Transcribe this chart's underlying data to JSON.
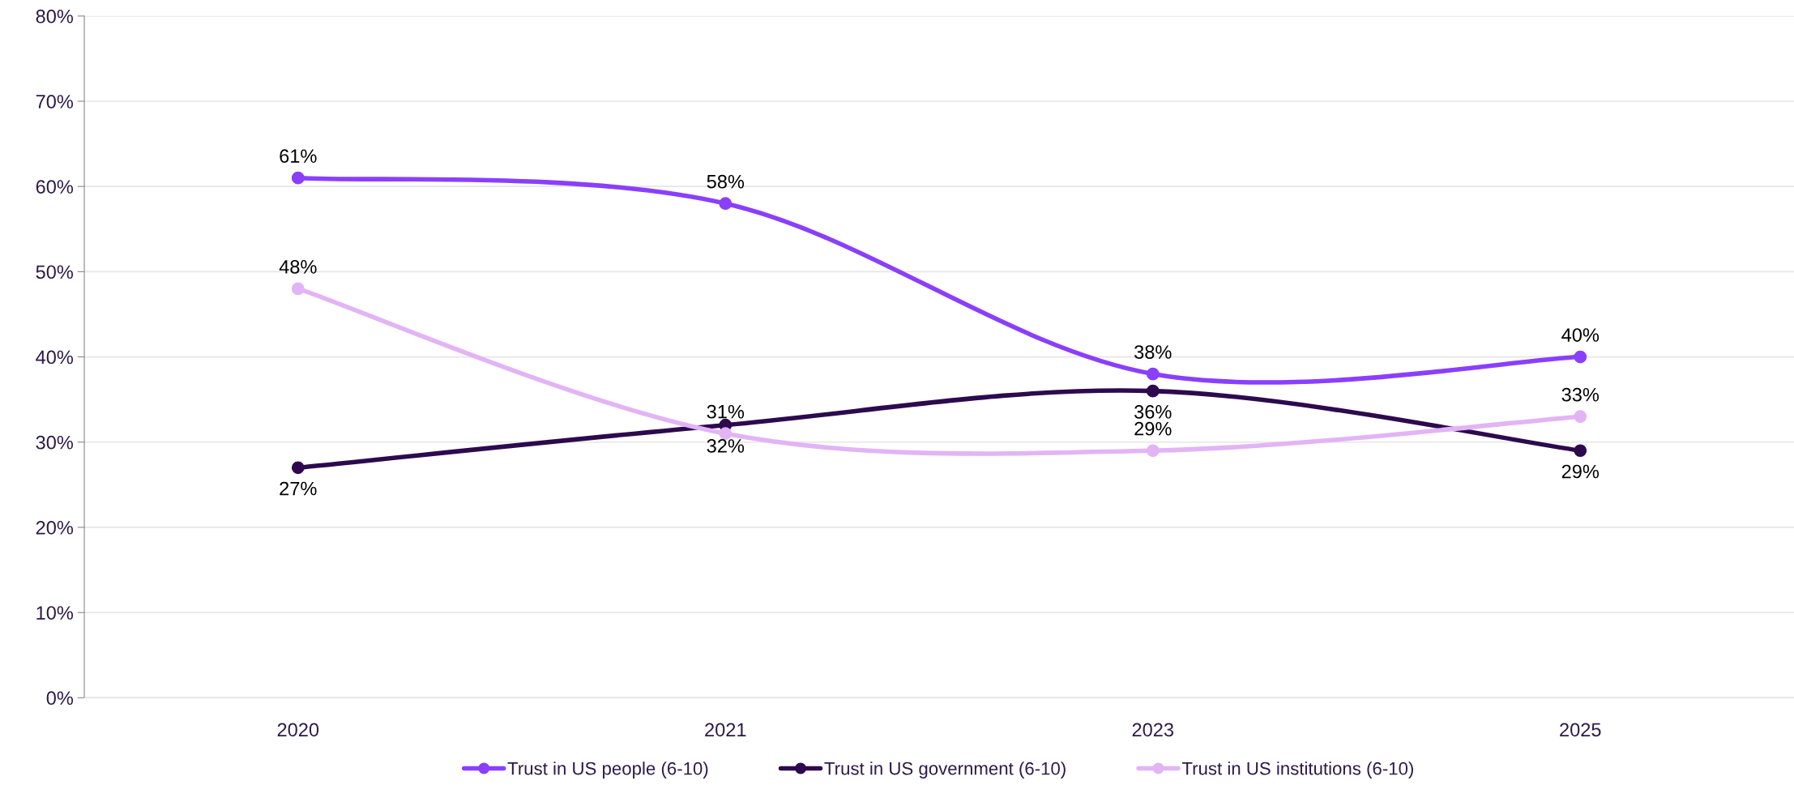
{
  "chart_data": {
    "type": "line",
    "categories": [
      "2020",
      "2021",
      "2023",
      "2025"
    ],
    "series": [
      {
        "name": "Trust in US people (6-10)",
        "color": "#8a3ffc",
        "values": [
          61,
          58,
          38,
          40
        ],
        "value_labels": [
          "61%",
          "58%",
          "38%",
          "40%"
        ]
      },
      {
        "name": "Trust in US government (6-10)",
        "color": "#2d0a4e",
        "values": [
          27,
          32,
          36,
          29
        ],
        "value_labels": [
          "27%",
          "32%",
          "36%",
          "29%"
        ]
      },
      {
        "name": "Trust in US institutions (6-10)",
        "color": "#e2b4f5",
        "values": [
          48,
          31,
          29,
          33
        ],
        "value_labels": [
          "48%",
          "31%",
          "29%",
          "33%"
        ]
      }
    ],
    "ylim": [
      0,
      80
    ],
    "yticks": [
      {
        "value": 0,
        "label": "0%"
      },
      {
        "value": 10,
        "label": "10%"
      },
      {
        "value": 20,
        "label": "20%"
      },
      {
        "value": 30,
        "label": "30%"
      },
      {
        "value": 40,
        "label": "40%"
      },
      {
        "value": 50,
        "label": "50%"
      },
      {
        "value": 60,
        "label": "60%"
      },
      {
        "value": 70,
        "label": "70%"
      },
      {
        "value": 80,
        "label": "80%"
      }
    ],
    "grid": "y",
    "legend": "bottom",
    "marker": "circle",
    "line_style": "solid"
  }
}
